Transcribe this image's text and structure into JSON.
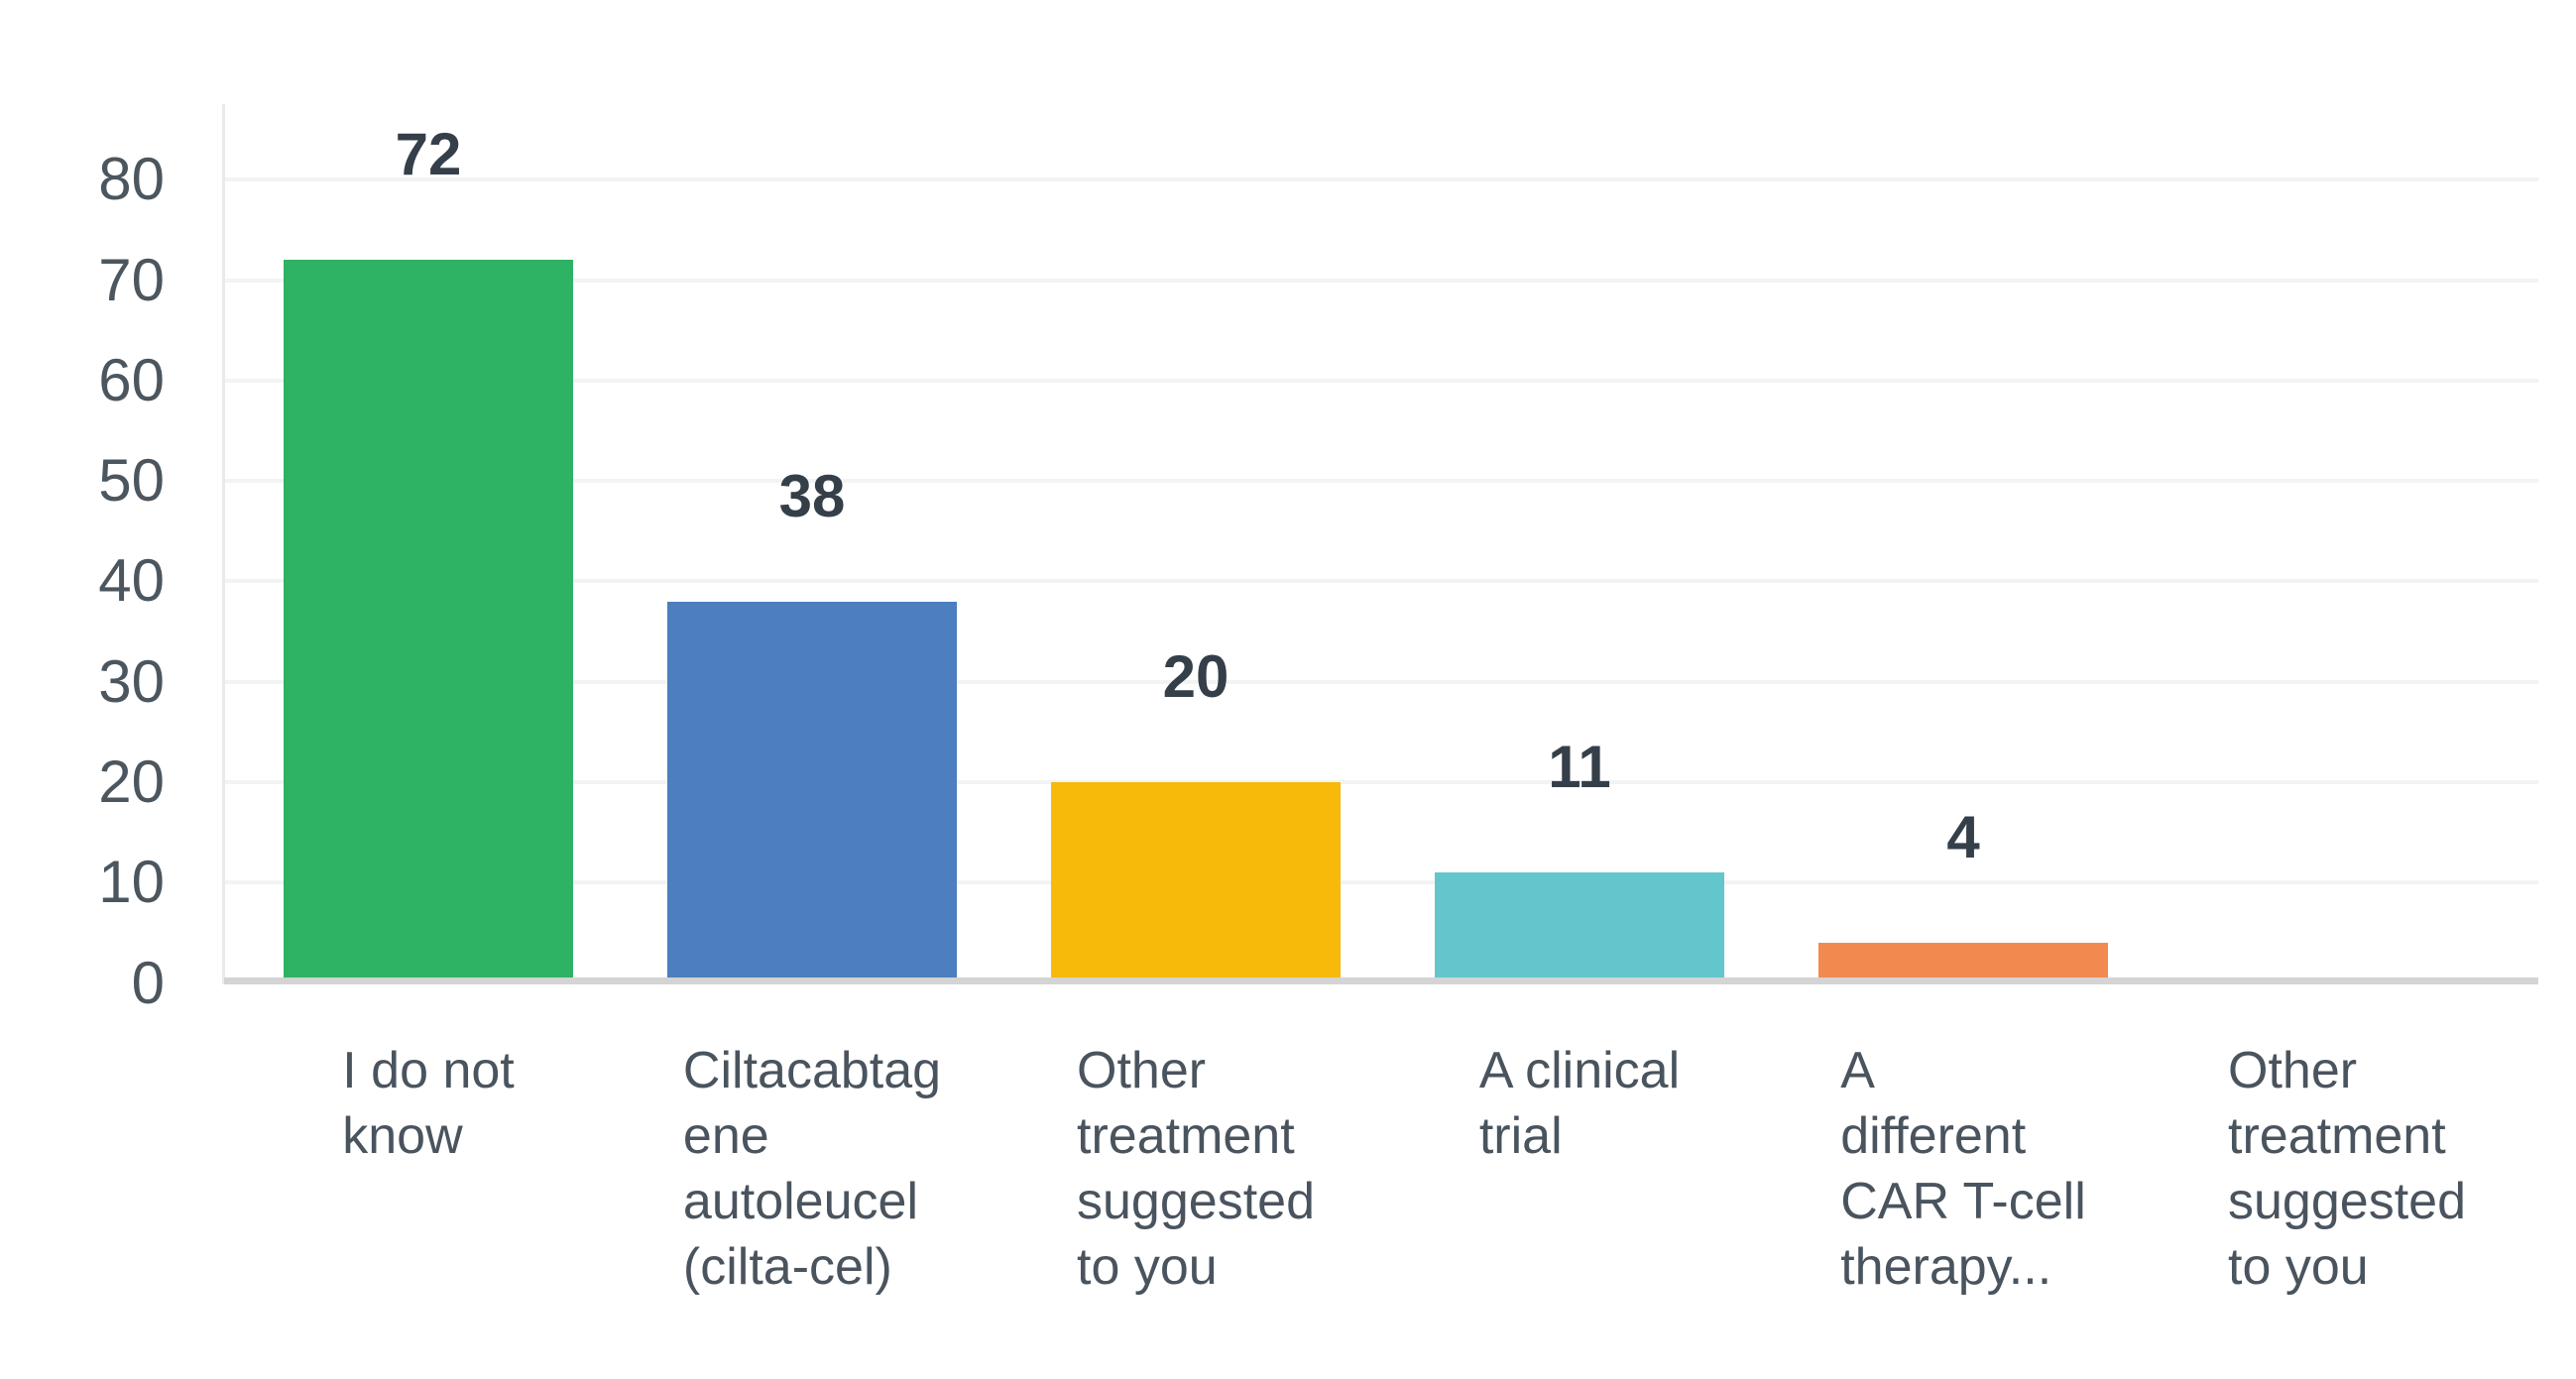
{
  "chart_data": {
    "type": "bar",
    "title": "",
    "xlabel": "",
    "ylabel": "",
    "categories": [
      "I do not know",
      "Ciltacabtagene autoleucel (cilta-cel)",
      "Other treatment suggested to you",
      "A clinical trial",
      "A different CAR T-cell therapy...",
      "Other treatment suggested to you"
    ],
    "category_display_lines": [
      [
        "I do not",
        "know"
      ],
      [
        "Ciltacabtag",
        "ene",
        "autoleucel",
        "(cilta-cel)"
      ],
      [
        "Other",
        "treatment",
        "suggested",
        "to you"
      ],
      [
        "A clinical",
        "trial"
      ],
      [
        "A",
        "different",
        "CAR T-cell",
        "therapy..."
      ],
      [
        "Other",
        "treatment",
        "suggested",
        "to you"
      ]
    ],
    "values": [
      72,
      38,
      20,
      11,
      4,
      0
    ],
    "data_labels": [
      "72",
      "38",
      "20",
      "11",
      "4",
      ""
    ],
    "bar_colors": [
      "#2EB264",
      "#4D7EBD",
      "#F7B90A",
      "#63C6CC",
      "#F28A50",
      null
    ],
    "y_ticks": [
      0,
      10,
      20,
      30,
      40,
      50,
      60,
      70,
      80
    ],
    "y_tick_labels": [
      "0",
      "10",
      "20",
      "30",
      "40",
      "50",
      "60",
      "70",
      "80"
    ],
    "ylim": [
      0,
      80
    ],
    "grid": true,
    "legend": "none",
    "colors": {
      "background": "#FFFFFF",
      "grid_line": "#F2F4F4",
      "y_axis_line": "#E9EBEB",
      "baseline": "#D4D4D4",
      "tick_text": "#4C565E",
      "x_label_text": "#4A545E",
      "value_text": "#353F49"
    }
  }
}
